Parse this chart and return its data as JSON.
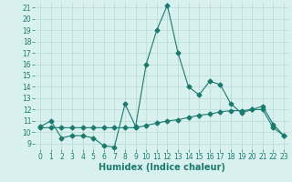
{
  "xlabel": "Humidex (Indice chaleur)",
  "xlim": [
    -0.5,
    23.5
  ],
  "ylim": [
    8.5,
    21.5
  ],
  "yticks": [
    9,
    10,
    11,
    12,
    13,
    14,
    15,
    16,
    17,
    18,
    19,
    20,
    21
  ],
  "xticks": [
    0,
    1,
    2,
    3,
    4,
    5,
    6,
    7,
    8,
    9,
    10,
    11,
    12,
    13,
    14,
    15,
    16,
    17,
    18,
    19,
    20,
    21,
    22,
    23
  ],
  "line1_x": [
    0,
    1,
    2,
    3,
    4,
    5,
    6,
    7,
    8,
    9,
    10,
    11,
    12,
    13,
    14,
    15,
    16,
    17,
    18,
    19,
    20,
    21,
    22,
    23
  ],
  "line1_y": [
    10.5,
    11.0,
    9.5,
    9.7,
    9.7,
    9.5,
    8.8,
    8.7,
    12.5,
    10.5,
    16.0,
    19.0,
    21.2,
    17.0,
    14.0,
    13.3,
    14.5,
    14.2,
    12.5,
    11.7,
    12.0,
    12.3,
    10.7,
    9.7
  ],
  "line2_x": [
    0,
    1,
    2,
    3,
    4,
    5,
    6,
    7,
    8,
    9,
    10,
    11,
    12,
    13,
    14,
    15,
    16,
    17,
    18,
    19,
    20,
    21,
    22,
    23
  ],
  "line2_y": [
    10.4,
    10.4,
    10.4,
    10.4,
    10.4,
    10.4,
    10.4,
    10.4,
    10.4,
    10.4,
    10.6,
    10.8,
    11.0,
    11.1,
    11.3,
    11.5,
    11.6,
    11.8,
    11.9,
    11.9,
    12.0,
    12.0,
    10.4,
    9.7
  ],
  "line_color": "#1a7a6e",
  "bg_color": "#d8f0ee",
  "grid_color": "#b8dbd8",
  "marker": "D",
  "marker_size": 2.5,
  "linewidth": 0.8,
  "tick_labelsize": 5.5,
  "xlabel_fontsize": 7
}
